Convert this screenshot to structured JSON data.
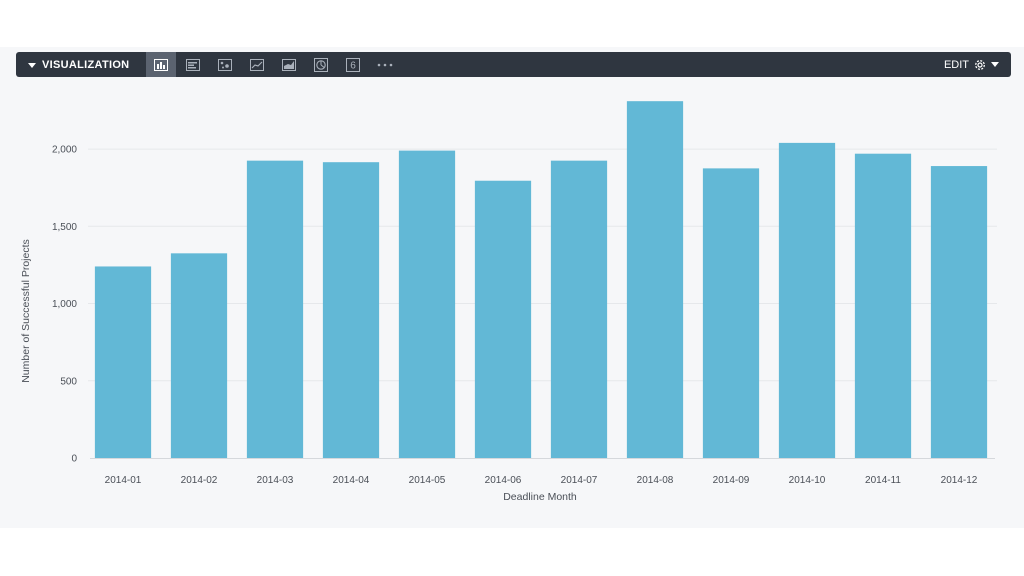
{
  "toolbar": {
    "title": "VISUALIZATION",
    "edit_label": "EDIT",
    "vis_types": [
      {
        "icon": "column-chart-icon",
        "active": true
      },
      {
        "icon": "bar-chart-icon",
        "active": false
      },
      {
        "icon": "scatter-chart-icon",
        "active": false
      },
      {
        "icon": "line-chart-icon",
        "active": false
      },
      {
        "icon": "area-chart-icon",
        "active": false
      },
      {
        "icon": "pie-chart-icon",
        "active": false
      },
      {
        "icon": "single-value-icon",
        "label": "6",
        "active": false
      },
      {
        "icon": "more-options-icon",
        "active": false
      }
    ]
  },
  "colors": {
    "toolbar_bg": "#2f3640",
    "bar": "#62b8d6",
    "panel_bg": "#f6f7f9"
  },
  "chart_data": {
    "type": "bar",
    "categories": [
      "2014-01",
      "2014-02",
      "2014-03",
      "2014-04",
      "2014-05",
      "2014-06",
      "2014-07",
      "2014-08",
      "2014-09",
      "2014-10",
      "2014-11",
      "2014-12"
    ],
    "values": [
      1240,
      1325,
      1925,
      1915,
      1990,
      1795,
      1925,
      2310,
      1875,
      2040,
      1970,
      1890
    ],
    "xlabel": "Deadline Month",
    "ylabel": "Number of Successful Projects",
    "ylim": [
      0,
      2350
    ],
    "yticks": [
      0,
      500,
      1000,
      1500,
      2000
    ],
    "ytick_labels": [
      "0",
      "500",
      "1,000",
      "1,500",
      "2,000"
    ],
    "grid": true
  }
}
